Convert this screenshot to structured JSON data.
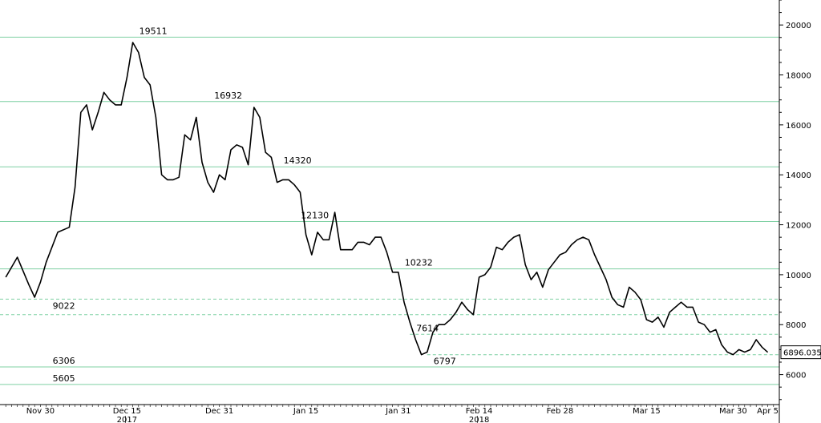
{
  "chart_data": {
    "type": "line",
    "title": "",
    "xlabel": "",
    "ylabel": "",
    "ylim": [
      4800,
      21000
    ],
    "grid": false,
    "x_ticks": [
      {
        "label": "Nov 30",
        "date": "2017-11-30"
      },
      {
        "label": "Dec 15",
        "date": "2017-12-15"
      },
      {
        "label": "Dec 31",
        "date": "2017-12-31"
      },
      {
        "label": "Jan 15",
        "date": "2018-01-15"
      },
      {
        "label": "Jan 31",
        "date": "2018-01-31"
      },
      {
        "label": "Feb 14",
        "date": "2018-02-14"
      },
      {
        "label": "Feb 28",
        "date": "2018-02-28"
      },
      {
        "label": "Mar 15",
        "date": "2018-03-15"
      },
      {
        "label": "Mar 30",
        "date": "2018-03-30"
      },
      {
        "label": "Apr 5",
        "date": "2018-04-05"
      }
    ],
    "year_labels": [
      {
        "label": "2017",
        "date": "2017-12-15"
      },
      {
        "label": "2018",
        "date": "2018-02-14"
      }
    ],
    "y_ticks": [
      6000,
      8000,
      10000,
      12000,
      14000,
      16000,
      18000,
      20000
    ],
    "levels_solid": [
      {
        "value": 19511,
        "label": "19511",
        "date": "2017-12-16"
      },
      {
        "value": 16932,
        "label": "16932",
        "date": "2017-12-29"
      },
      {
        "value": 14320,
        "label": "14320",
        "date": "2018-01-10"
      },
      {
        "value": 12130,
        "label": "12130",
        "date": "2018-01-13"
      },
      {
        "value": 10232,
        "label": "10232",
        "date": "2018-01-31"
      },
      {
        "value": 6306,
        "label": "6306",
        "date": "2017-12-01"
      },
      {
        "value": 5605,
        "label": "5605",
        "date": "2017-12-01"
      }
    ],
    "levels_dashed": [
      {
        "value": 9022,
        "label": "9022",
        "date": "2017-12-01"
      },
      {
        "value": 8400,
        "label": ""
      },
      {
        "value": 7614,
        "label": "7614",
        "date": "2018-02-02"
      },
      {
        "value": 6797,
        "label": "6797",
        "date": "2018-02-05"
      }
    ],
    "last_price": {
      "value": 6896.0352,
      "label": "6896.0352"
    },
    "series": [
      {
        "x": [
          "2017-11-24",
          "2017-11-26",
          "2017-11-28",
          "2017-11-29",
          "2017-11-30",
          "2017-12-01",
          "2017-12-03",
          "2017-12-05",
          "2017-12-06",
          "2017-12-07",
          "2017-12-08",
          "2017-12-09",
          "2017-12-10",
          "2017-12-11",
          "2017-12-12",
          "2017-12-13",
          "2017-12-14",
          "2017-12-15",
          "2017-12-16",
          "2017-12-17",
          "2017-12-18",
          "2017-12-19",
          "2017-12-20",
          "2017-12-21",
          "2017-12-22",
          "2017-12-23",
          "2017-12-24",
          "2017-12-25",
          "2017-12-26",
          "2017-12-27",
          "2017-12-28",
          "2017-12-29",
          "2017-12-30",
          "2017-12-31",
          "2018-01-01",
          "2018-01-02",
          "2018-01-03",
          "2018-01-04",
          "2018-01-05",
          "2018-01-06",
          "2018-01-07",
          "2018-01-08",
          "2018-01-09",
          "2018-01-10",
          "2018-01-11",
          "2018-01-12",
          "2018-01-13",
          "2018-01-14",
          "2018-01-15",
          "2018-01-16",
          "2018-01-17",
          "2018-01-18",
          "2018-01-19",
          "2018-01-20",
          "2018-01-21",
          "2018-01-22",
          "2018-01-23",
          "2018-01-24",
          "2018-01-25",
          "2018-01-26",
          "2018-01-27",
          "2018-01-28",
          "2018-01-29",
          "2018-01-30",
          "2018-01-31",
          "2018-02-01",
          "2018-02-02",
          "2018-02-03",
          "2018-02-04",
          "2018-02-05",
          "2018-02-06",
          "2018-02-07",
          "2018-02-08",
          "2018-02-09",
          "2018-02-10",
          "2018-02-11",
          "2018-02-12",
          "2018-02-13",
          "2018-02-14",
          "2018-02-15",
          "2018-02-16",
          "2018-02-17",
          "2018-02-18",
          "2018-02-19",
          "2018-02-20",
          "2018-02-21",
          "2018-02-22",
          "2018-02-23",
          "2018-02-24",
          "2018-02-25",
          "2018-02-26",
          "2018-02-27",
          "2018-02-28",
          "2018-03-01",
          "2018-03-02",
          "2018-03-03",
          "2018-03-04",
          "2018-03-05",
          "2018-03-06",
          "2018-03-07",
          "2018-03-08",
          "2018-03-09",
          "2018-03-10",
          "2018-03-11",
          "2018-03-12",
          "2018-03-13",
          "2018-03-14",
          "2018-03-15",
          "2018-03-16",
          "2018-03-17",
          "2018-03-18",
          "2018-03-19",
          "2018-03-20",
          "2018-03-21",
          "2018-03-22",
          "2018-03-23",
          "2018-03-24",
          "2018-03-25",
          "2018-03-26",
          "2018-03-27",
          "2018-03-28",
          "2018-03-29",
          "2018-03-30",
          "2018-03-31",
          "2018-04-01",
          "2018-04-02",
          "2018-04-03",
          "2018-04-04",
          "2018-04-05"
        ],
        "values": [
          9900,
          10700,
          9600,
          9100,
          9700,
          10500,
          11700,
          11900,
          13500,
          16500,
          16800,
          15800,
          16500,
          17300,
          17000,
          16800,
          16800,
          17900,
          19300,
          18900,
          17900,
          17600,
          16300,
          14000,
          13800,
          13800,
          13900,
          15600,
          15400,
          16300,
          14500,
          13700,
          13300,
          14000,
          13800,
          15000,
          15200,
          15100,
          14400,
          16700,
          16300,
          14900,
          14700,
          13700,
          13800,
          13800,
          13600,
          13300,
          11600,
          10800,
          11700,
          11400,
          11400,
          12500,
          11000,
          11000,
          11000,
          11300,
          11300,
          11200,
          11500,
          11500,
          10900,
          10100,
          10100,
          8900,
          8100,
          7400,
          6800,
          6900,
          7700,
          8000,
          8000,
          8200,
          8500,
          8900,
          8600,
          8400,
          9900,
          10000,
          10300,
          11100,
          11000,
          11300,
          11500,
          11600,
          10400,
          9800,
          10100,
          9500,
          10200,
          10500,
          10800,
          10900,
          11200,
          11400,
          11500,
          11400,
          10800,
          10300,
          9800,
          9100,
          8800,
          8700,
          9500,
          9300,
          9000,
          8200,
          8100,
          8300,
          7900,
          8500,
          8700,
          8900,
          8700,
          8700,
          8100,
          8000,
          7700,
          7800,
          7200,
          6900,
          6800,
          7000,
          6900,
          7000,
          7400,
          7100,
          6896.0352
        ]
      }
    ]
  }
}
